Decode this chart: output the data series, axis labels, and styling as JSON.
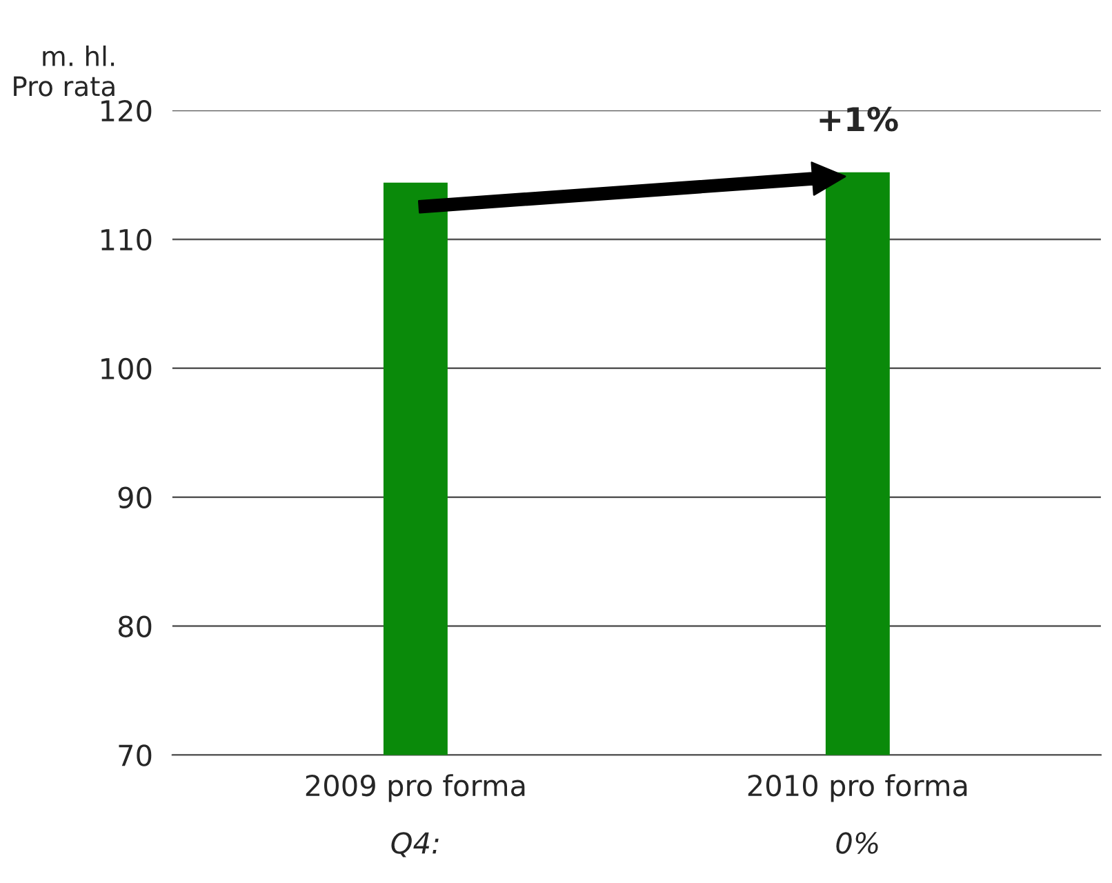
{
  "chart_data": {
    "type": "bar",
    "ylabel": "m. hl.\nPro rata",
    "categories": [
      "2009 pro forma",
      "2010 pro forma"
    ],
    "values": [
      114.4,
      115.2
    ],
    "color": "#0a8a0a",
    "ylim": [
      70,
      120
    ],
    "yticks": [
      70,
      80,
      90,
      100,
      110,
      120
    ],
    "grid": "y",
    "annotations": [
      {
        "text": "+1%",
        "x": "2010 pro forma",
        "y": 115.2
      },
      "Q4:",
      "0%"
    ]
  }
}
